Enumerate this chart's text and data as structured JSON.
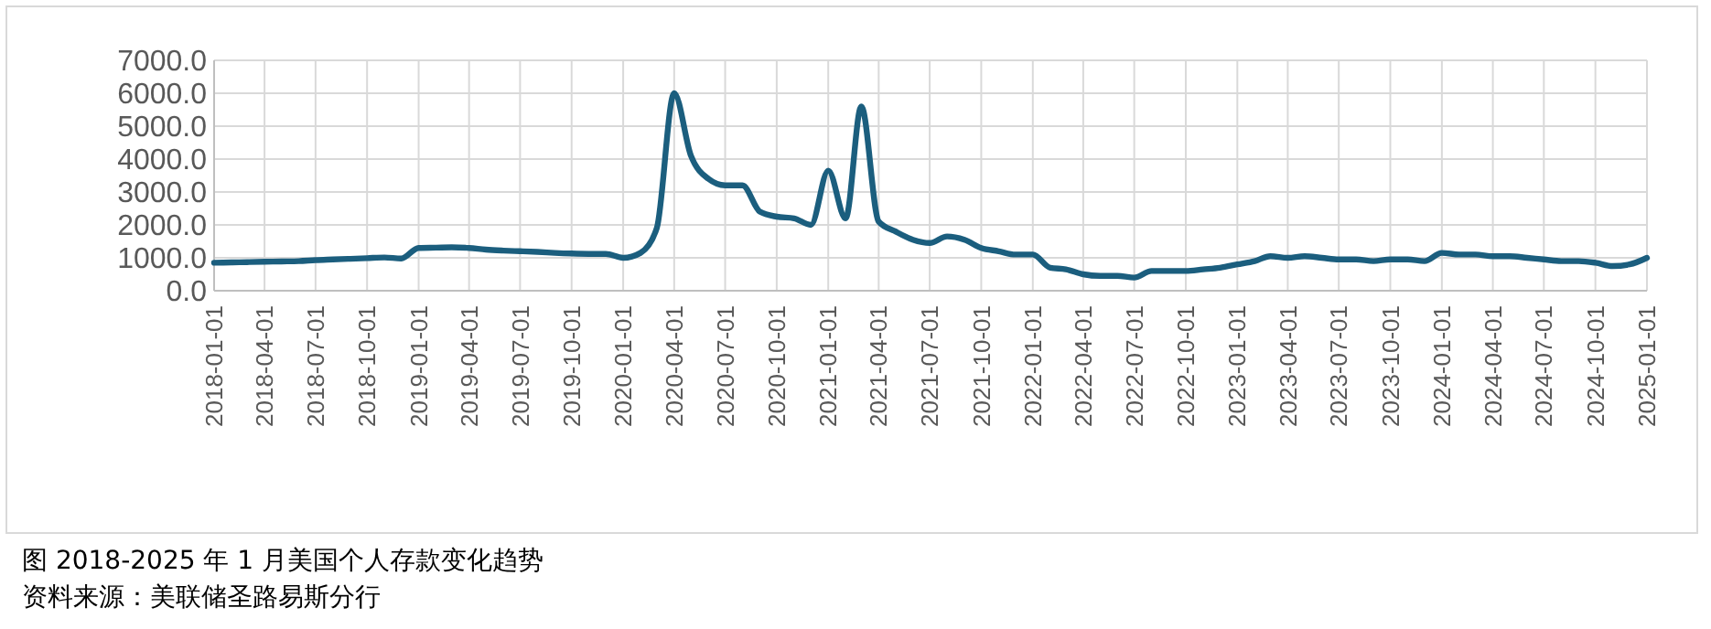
{
  "chart_data": {
    "type": "line",
    "annotations": [
      "图 2018-2025 年 1 月美国个人存款变化趋势",
      "资料来源：美联储圣路易斯分行"
    ],
    "x": [
      "2018-01-01",
      "2018-02-01",
      "2018-03-01",
      "2018-04-01",
      "2018-05-01",
      "2018-06-01",
      "2018-07-01",
      "2018-08-01",
      "2018-09-01",
      "2018-10-01",
      "2018-11-01",
      "2018-12-01",
      "2019-01-01",
      "2019-02-01",
      "2019-03-01",
      "2019-04-01",
      "2019-05-01",
      "2019-06-01",
      "2019-07-01",
      "2019-08-01",
      "2019-09-01",
      "2019-10-01",
      "2019-11-01",
      "2019-12-01",
      "2020-01-01",
      "2020-02-01",
      "2020-03-01",
      "2020-04-01",
      "2020-05-01",
      "2020-06-01",
      "2020-07-01",
      "2020-08-01",
      "2020-09-01",
      "2020-10-01",
      "2020-11-01",
      "2020-12-01",
      "2021-01-01",
      "2021-02-01",
      "2021-03-01",
      "2021-04-01",
      "2021-05-01",
      "2021-06-01",
      "2021-07-01",
      "2021-08-01",
      "2021-09-01",
      "2021-10-01",
      "2021-11-01",
      "2021-12-01",
      "2022-01-01",
      "2022-02-01",
      "2022-03-01",
      "2022-04-01",
      "2022-05-01",
      "2022-06-01",
      "2022-07-01",
      "2022-08-01",
      "2022-09-01",
      "2022-10-01",
      "2022-11-01",
      "2022-12-01",
      "2023-01-01",
      "2023-02-01",
      "2023-03-01",
      "2023-04-01",
      "2023-05-01",
      "2023-06-01",
      "2023-07-01",
      "2023-08-01",
      "2023-09-01",
      "2023-10-01",
      "2023-11-01",
      "2023-12-01",
      "2024-01-01",
      "2024-02-01",
      "2024-03-01",
      "2024-04-01",
      "2024-05-01",
      "2024-06-01",
      "2024-07-01",
      "2024-08-01",
      "2024-09-01",
      "2024-10-01",
      "2024-11-01",
      "2024-12-01",
      "2025-01-01"
    ],
    "series": [
      {
        "color": "#1b5e7e",
        "values": [
          850,
          860,
          870,
          880,
          890,
          900,
          930,
          950,
          970,
          990,
          1010,
          980,
          1300,
          1310,
          1320,
          1300,
          1250,
          1220,
          1200,
          1180,
          1150,
          1130,
          1120,
          1120,
          1000,
          1150,
          1900,
          6000,
          4100,
          3400,
          3200,
          3200,
          2400,
          2250,
          2200,
          2000,
          3650,
          2200,
          5600,
          2100,
          1800,
          1550,
          1450,
          1650,
          1550,
          1300,
          1200,
          1100,
          1100,
          700,
          650,
          500,
          450,
          450,
          400,
          600,
          600,
          600,
          650,
          700,
          800,
          900,
          1050,
          1000,
          1050,
          1000,
          950,
          950,
          900,
          950,
          950,
          900,
          1150,
          1100,
          1100,
          1050,
          1050,
          1000,
          950,
          900,
          900,
          850,
          750,
          800,
          1000
        ]
      }
    ],
    "xlim": [
      "2018-01-01",
      "2025-01-01"
    ],
    "xticks": [
      "2018-01-01",
      "2018-04-01",
      "2018-07-01",
      "2018-10-01",
      "2019-01-01",
      "2019-04-01",
      "2019-07-01",
      "2019-10-01",
      "2020-01-01",
      "2020-04-01",
      "2020-07-01",
      "2020-10-01",
      "2021-01-01",
      "2021-04-01",
      "2021-07-01",
      "2021-10-01",
      "2022-01-01",
      "2022-04-01",
      "2022-07-01",
      "2022-10-01",
      "2023-01-01",
      "2023-04-01",
      "2023-07-01",
      "2023-10-01",
      "2024-01-01",
      "2024-04-01",
      "2024-07-01",
      "2024-10-01",
      "2025-01-01"
    ],
    "ylim": [
      0,
      7000
    ],
    "yticks": [
      {
        "value": 0,
        "label": "0.0"
      },
      {
        "value": 1000,
        "label": "1000.0"
      },
      {
        "value": 2000,
        "label": "2000.0"
      },
      {
        "value": 3000,
        "label": "3000.0"
      },
      {
        "value": 4000,
        "label": "4000.0"
      },
      {
        "value": 5000,
        "label": "5000.0"
      },
      {
        "value": 6000,
        "label": "6000.0"
      },
      {
        "value": 7000,
        "label": "7000.0"
      }
    ],
    "grid": true,
    "marker": "none",
    "line_style": "solid"
  }
}
